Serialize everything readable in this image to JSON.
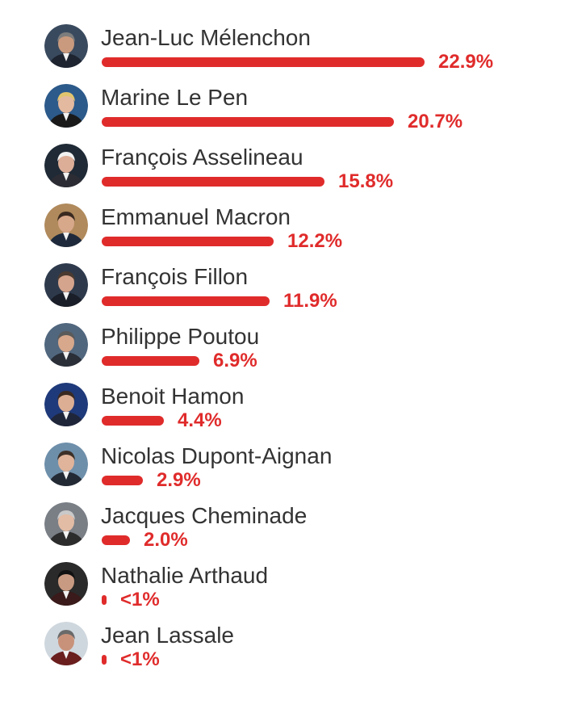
{
  "chart_data": {
    "type": "bar",
    "orientation": "horizontal",
    "categories": [
      "Jean-Luc Mélenchon",
      "Marine Le Pen",
      "François Asselineau",
      "Emmanuel Macron",
      "François Fillon",
      "Philippe Poutou",
      "Benoit Hamon",
      "Nicolas Dupont-Aignan",
      "Jacques Cheminade",
      "Nathalie Arthaud",
      "Jean Lassale"
    ],
    "values": [
      22.9,
      20.7,
      15.8,
      12.2,
      11.9,
      6.9,
      4.4,
      2.9,
      2.0,
      0.3,
      0.3
    ],
    "value_labels": [
      "22.9%",
      "20.7%",
      "15.8%",
      "12.2%",
      "11.9%",
      "6.9%",
      "4.4%",
      "2.9%",
      "2.0%",
      "<1%",
      "<1%"
    ],
    "bar_color": "#e02b2b",
    "label_color": "#333333",
    "grid": false,
    "legend": "none",
    "avatar_tones": [
      {
        "bg": "#3a4a5e",
        "skin": "#c99a7e",
        "hair": "#7d7d7d",
        "suit": "#1e2430"
      },
      {
        "bg": "#2c5a8a",
        "skin": "#e3b99f",
        "hair": "#e1c56e",
        "suit": "#1a1a1a"
      },
      {
        "bg": "#1f2a36",
        "skin": "#dcae98",
        "hair": "#f1f1f1",
        "suit": "#2c2c34"
      },
      {
        "bg": "#b08a5c",
        "skin": "#d8a88b",
        "hair": "#3a2a20",
        "suit": "#1e2a3c"
      },
      {
        "bg": "#2e3a4c",
        "skin": "#d5a48d",
        "hair": "#4a3a30",
        "suit": "#1a1e28"
      },
      {
        "bg": "#51677e",
        "skin": "#d7a88c",
        "hair": "#5a5a5a",
        "suit": "#2a2f38"
      },
      {
        "bg": "#1f3a7a",
        "skin": "#dcae93",
        "hair": "#3a2a22",
        "suit": "#20263a"
      },
      {
        "bg": "#6e8faa",
        "skin": "#e0b49a",
        "hair": "#3c3028",
        "suit": "#242a34"
      },
      {
        "bg": "#7a7f86",
        "skin": "#e3bca5",
        "hair": "#c9c9c9",
        "suit": "#2c2c2c"
      },
      {
        "bg": "#2a2a2a",
        "skin": "#c89a82",
        "hair": "#111111",
        "suit": "#3a1a1a"
      },
      {
        "bg": "#cfd7de",
        "skin": "#c8927a",
        "hair": "#6a6a6a",
        "suit": "#6a1e1e"
      }
    ]
  }
}
